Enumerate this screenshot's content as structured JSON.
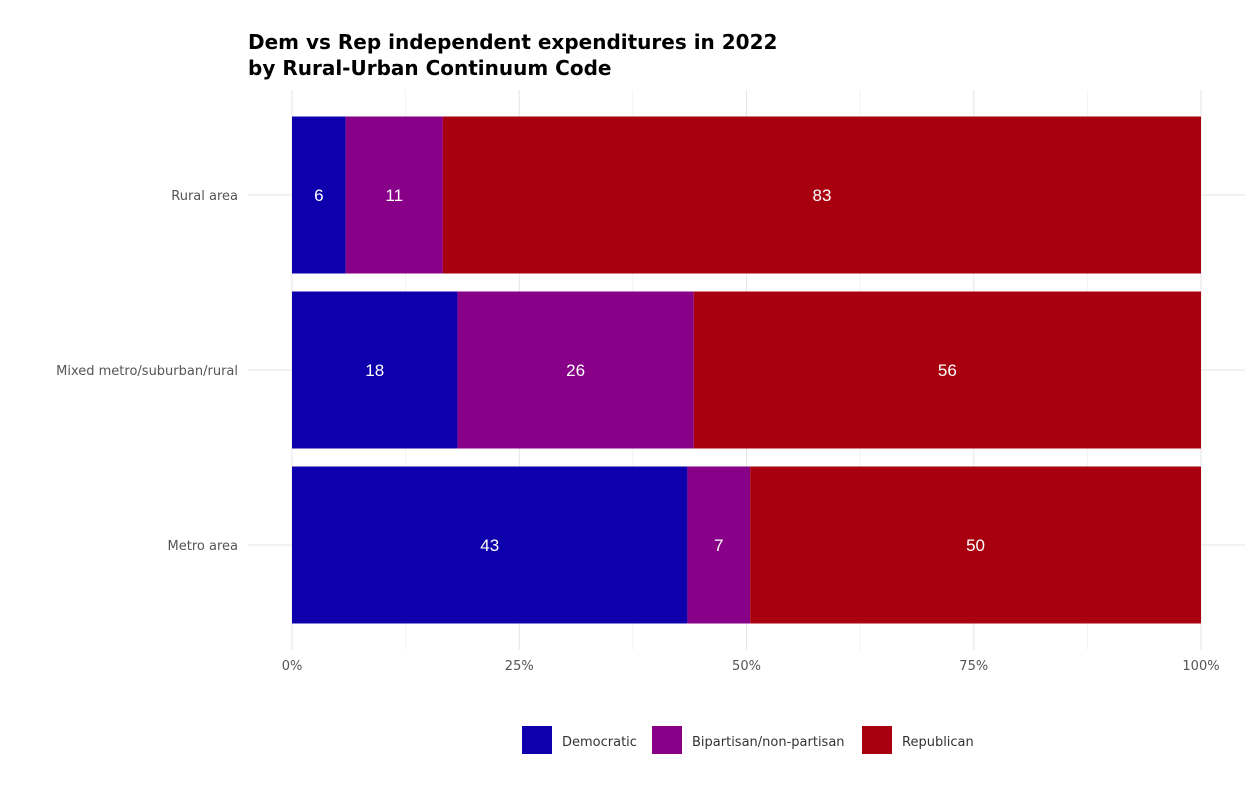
{
  "chart_data": {
    "type": "bar",
    "orientation": "horizontal",
    "stacked": true,
    "title": "Dem vs Rep independent expenditures in 2022",
    "subtitle": "by Rural-Urban Continuum Code",
    "xlabel": "",
    "ylabel": "",
    "xlim": [
      0,
      100
    ],
    "x_ticks": [
      "0%",
      "25%",
      "50%",
      "75%",
      "100%"
    ],
    "grid": true,
    "legend_position": "bottom",
    "categories": [
      "Rural area",
      "Mixed metro/suburban/rural",
      "Metro area"
    ],
    "series": [
      {
        "name": "Democratic",
        "color": "#0d00ac",
        "values": [
          5.9,
          18.2,
          43.5
        ],
        "labels": [
          "6",
          "18",
          "43"
        ]
      },
      {
        "name": "Bipartisan/non-partisan",
        "color": "#880088",
        "values": [
          10.7,
          26.0,
          6.9
        ],
        "labels": [
          "11",
          "26",
          "7"
        ]
      },
      {
        "name": "Republican",
        "color": "#a8000f",
        "values": [
          83.4,
          55.8,
          49.6
        ],
        "labels": [
          "83",
          "56",
          "50"
        ]
      }
    ]
  }
}
